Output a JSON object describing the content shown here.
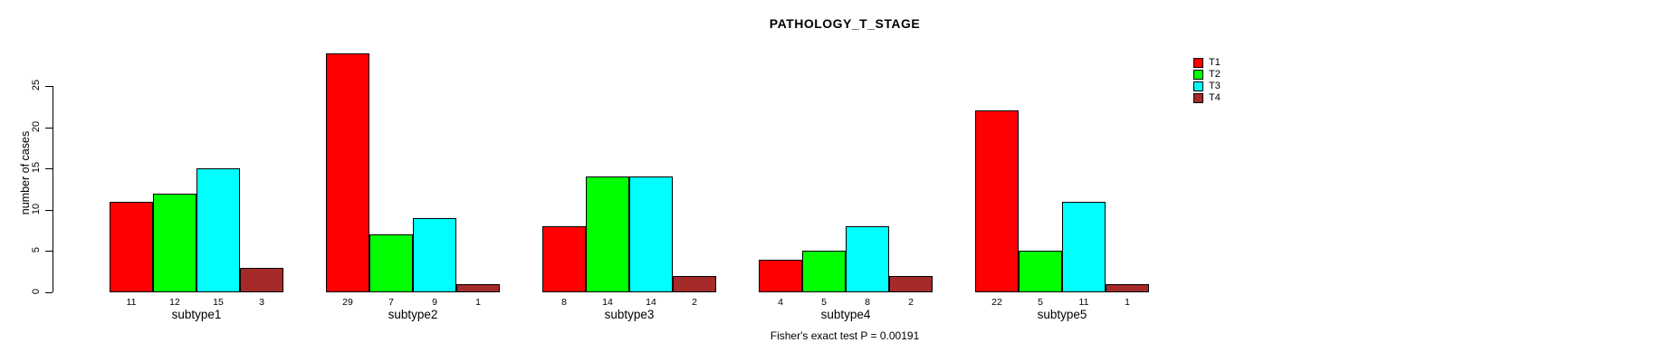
{
  "chart_data": {
    "type": "bar",
    "title": "PATHOLOGY_T_STAGE",
    "ylabel": "number of cases",
    "xlabel": "",
    "categories": [
      "subtype1",
      "subtype2",
      "subtype3",
      "subtype4",
      "subtype5"
    ],
    "series": [
      {
        "name": "T1",
        "color": "#ff0000",
        "values": [
          11,
          29,
          8,
          4,
          22
        ]
      },
      {
        "name": "T2",
        "color": "#00ff00",
        "values": [
          12,
          7,
          14,
          5,
          5
        ]
      },
      {
        "name": "T3",
        "color": "#00ffff",
        "values": [
          15,
          9,
          14,
          8,
          11
        ]
      },
      {
        "name": "T4",
        "color": "#a52a2a",
        "values": [
          3,
          1,
          2,
          2,
          1
        ]
      }
    ],
    "bar_value_labels": true,
    "yticks": [
      0,
      5,
      10,
      15,
      20,
      25
    ],
    "ylim": [
      0,
      29
    ],
    "grid": false,
    "legend_position": "top-right",
    "annotation": "Fisher's exact test P = 0.00191"
  }
}
